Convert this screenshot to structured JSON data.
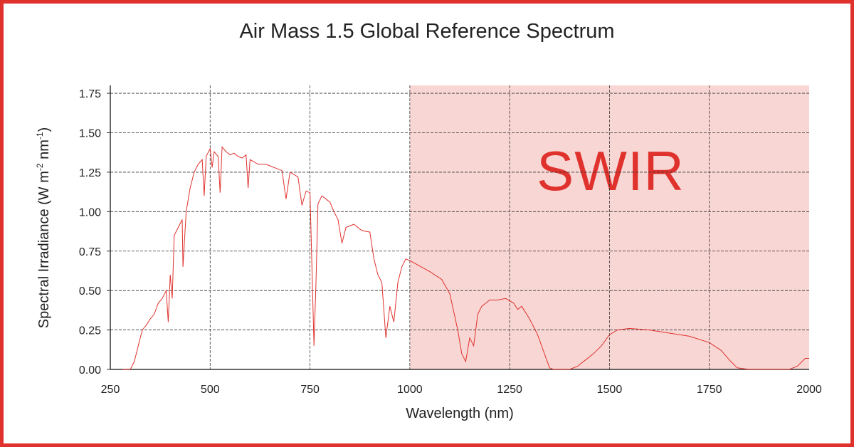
{
  "chart_data": {
    "type": "line",
    "title": "Air Mass 1.5 Global Reference Spectrum",
    "xlabel": "Wavelength (nm)",
    "ylabel_parts": [
      "Spectral Irradiance (W m",
      "-2",
      " nm",
      "-1",
      ")"
    ],
    "xlim": [
      250,
      2000
    ],
    "ylim": [
      0,
      1.8
    ],
    "xticks": [
      250,
      500,
      750,
      1000,
      1250,
      1500,
      1750,
      2000
    ],
    "yticks": [
      "0.00",
      "0.25",
      "0.50",
      "0.75",
      "1.00",
      "1.25",
      "1.50",
      "1.75"
    ],
    "grid": true,
    "line_color": "#e0322d",
    "region": {
      "label": "SWIR",
      "from": 1000,
      "to": 2000,
      "color": "#f8d6d4",
      "label_color": "#e0322d"
    },
    "series": [
      {
        "points": [
          [
            280,
            0
          ],
          [
            300,
            0
          ],
          [
            310,
            0.05
          ],
          [
            320,
            0.15
          ],
          [
            330,
            0.25
          ],
          [
            340,
            0.28
          ],
          [
            350,
            0.32
          ],
          [
            360,
            0.35
          ],
          [
            370,
            0.42
          ],
          [
            380,
            0.45
          ],
          [
            390,
            0.5
          ],
          [
            395,
            0.3
          ],
          [
            400,
            0.6
          ],
          [
            405,
            0.45
          ],
          [
            410,
            0.85
          ],
          [
            420,
            0.9
          ],
          [
            430,
            0.95
          ],
          [
            432,
            0.65
          ],
          [
            440,
            1.0
          ],
          [
            450,
            1.15
          ],
          [
            460,
            1.25
          ],
          [
            470,
            1.3
          ],
          [
            480,
            1.33
          ],
          [
            485,
            1.1
          ],
          [
            490,
            1.35
          ],
          [
            500,
            1.4
          ],
          [
            505,
            1.28
          ],
          [
            510,
            1.38
          ],
          [
            520,
            1.35
          ],
          [
            525,
            1.12
          ],
          [
            530,
            1.41
          ],
          [
            540,
            1.38
          ],
          [
            550,
            1.36
          ],
          [
            560,
            1.37
          ],
          [
            570,
            1.35
          ],
          [
            580,
            1.34
          ],
          [
            590,
            1.36
          ],
          [
            595,
            1.15
          ],
          [
            600,
            1.33
          ],
          [
            620,
            1.3
          ],
          [
            640,
            1.3
          ],
          [
            660,
            1.28
          ],
          [
            680,
            1.26
          ],
          [
            690,
            1.08
          ],
          [
            700,
            1.25
          ],
          [
            720,
            1.22
          ],
          [
            730,
            1.04
          ],
          [
            740,
            1.13
          ],
          [
            750,
            1.12
          ],
          [
            760,
            0.15
          ],
          [
            765,
            0.55
          ],
          [
            770,
            1.05
          ],
          [
            780,
            1.1
          ],
          [
            800,
            1.06
          ],
          [
            810,
            1.0
          ],
          [
            820,
            0.95
          ],
          [
            830,
            0.8
          ],
          [
            840,
            0.9
          ],
          [
            860,
            0.92
          ],
          [
            880,
            0.88
          ],
          [
            900,
            0.87
          ],
          [
            910,
            0.7
          ],
          [
            920,
            0.6
          ],
          [
            930,
            0.55
          ],
          [
            940,
            0.2
          ],
          [
            950,
            0.4
          ],
          [
            960,
            0.3
          ],
          [
            970,
            0.55
          ],
          [
            980,
            0.65
          ],
          [
            990,
            0.7
          ],
          [
            1000,
            0.69
          ],
          [
            1050,
            0.62
          ],
          [
            1080,
            0.57
          ],
          [
            1100,
            0.48
          ],
          [
            1120,
            0.25
          ],
          [
            1130,
            0.1
          ],
          [
            1140,
            0.05
          ],
          [
            1150,
            0.2
          ],
          [
            1160,
            0.15
          ],
          [
            1170,
            0.35
          ],
          [
            1180,
            0.4
          ],
          [
            1200,
            0.44
          ],
          [
            1220,
            0.44
          ],
          [
            1240,
            0.45
          ],
          [
            1260,
            0.42
          ],
          [
            1270,
            0.38
          ],
          [
            1280,
            0.4
          ],
          [
            1300,
            0.32
          ],
          [
            1320,
            0.22
          ],
          [
            1340,
            0.08
          ],
          [
            1350,
            0.01
          ],
          [
            1360,
            0
          ],
          [
            1400,
            0
          ],
          [
            1420,
            0.02
          ],
          [
            1440,
            0.06
          ],
          [
            1460,
            0.1
          ],
          [
            1480,
            0.15
          ],
          [
            1500,
            0.22
          ],
          [
            1520,
            0.25
          ],
          [
            1550,
            0.26
          ],
          [
            1600,
            0.25
          ],
          [
            1650,
            0.23
          ],
          [
            1700,
            0.21
          ],
          [
            1750,
            0.17
          ],
          [
            1780,
            0.12
          ],
          [
            1800,
            0.06
          ],
          [
            1820,
            0.01
          ],
          [
            1850,
            0
          ],
          [
            1950,
            0
          ],
          [
            1970,
            0.02
          ],
          [
            1990,
            0.07
          ],
          [
            2000,
            0.07
          ]
        ]
      }
    ]
  }
}
